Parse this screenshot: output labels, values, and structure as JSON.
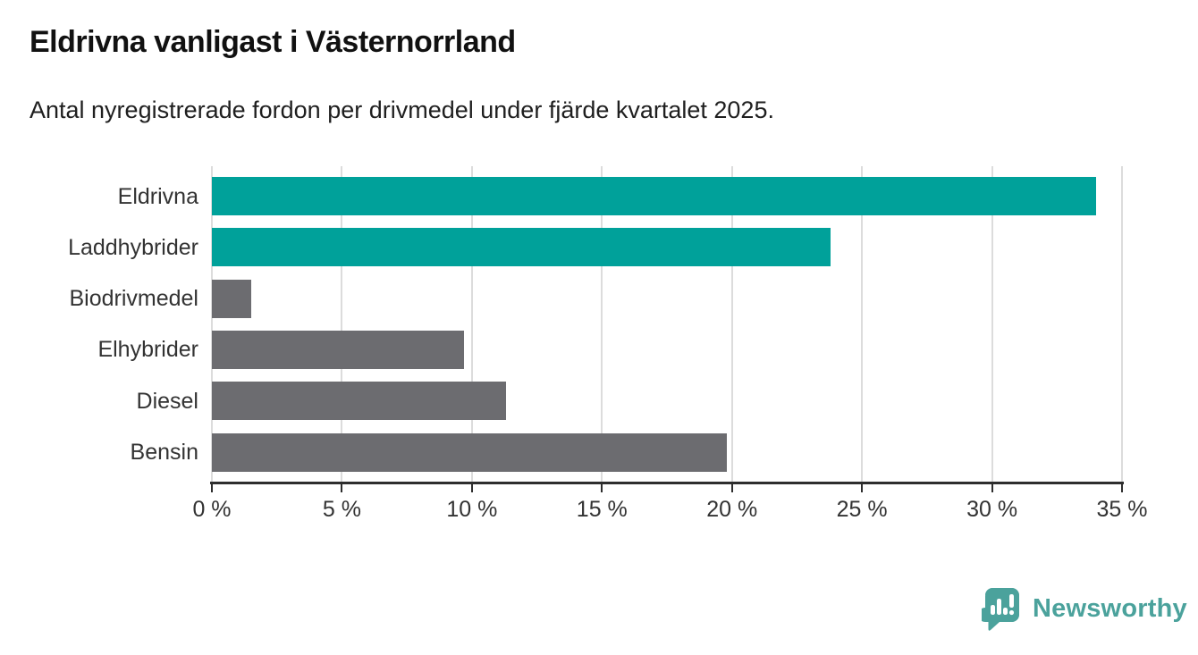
{
  "header": {
    "title": "Eldrivna vanligast i Västernorrland",
    "subtitle": "Antal nyregistrerade fordon per drivmedel under fjärde kvartalet 2025."
  },
  "chart_data": {
    "type": "bar",
    "orientation": "horizontal",
    "title": "Eldrivna vanligast i Västernorrland",
    "subtitle": "Antal nyregistrerade fordon per drivmedel under fjärde kvartalet 2025.",
    "categories": [
      "Eldrivna",
      "Laddhybrider",
      "Biodrivmedel",
      "Elhybrider",
      "Diesel",
      "Bensin"
    ],
    "values": [
      34.0,
      23.8,
      1.5,
      9.7,
      11.3,
      19.8
    ],
    "unit": "%",
    "colors": [
      "#00a19a",
      "#00a19a",
      "#6c6c70",
      "#6c6c70",
      "#6c6c70",
      "#6c6c70"
    ],
    "highlight_color": "#00a19a",
    "base_color": "#6c6c70",
    "xlabel": "",
    "ylabel": "",
    "xlim": [
      0,
      35
    ],
    "x_tick_values": [
      0,
      5,
      10,
      15,
      20,
      25,
      30,
      35
    ],
    "x_tick_labels": [
      "0 %",
      "5 %",
      "10 %",
      "15 %",
      "20 %",
      "25 %",
      "30 %",
      "35 %"
    ],
    "grid": "vertical-only",
    "legend": "none"
  },
  "footer": {
    "brand": "Newsworthy",
    "brand_color": "#4ba29c",
    "logo_icon": "newsworthy-bubble-bars-icon"
  }
}
